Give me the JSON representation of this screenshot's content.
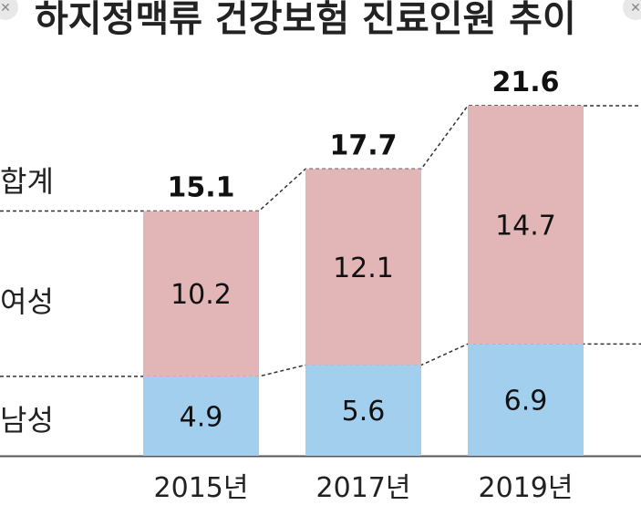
{
  "title": "하지정맥류 건강보험 진료인원 추이",
  "close_icon": "close-icon",
  "chart_data": {
    "type": "bar",
    "stacked": true,
    "categories": [
      "2015년",
      "2017년",
      "2019년"
    ],
    "series": [
      {
        "name": "남성",
        "values": [
          4.9,
          5.6,
          6.9
        ],
        "color": "#a3cfee"
      },
      {
        "name": "여성",
        "values": [
          10.2,
          12.1,
          14.7
        ],
        "color": "#e2b5b7"
      }
    ],
    "totals": [
      15.1,
      17.7,
      21.6
    ],
    "total_label": "합계",
    "total_labels": [
      "15.1",
      "17.7",
      "21.6"
    ],
    "segment_labels": [
      [
        "4.9",
        "5.6",
        "6.9"
      ],
      [
        "10.2",
        "12.1",
        "14.7"
      ]
    ],
    "ylim": [
      0,
      21.6
    ],
    "grid": false,
    "legend": "left"
  }
}
